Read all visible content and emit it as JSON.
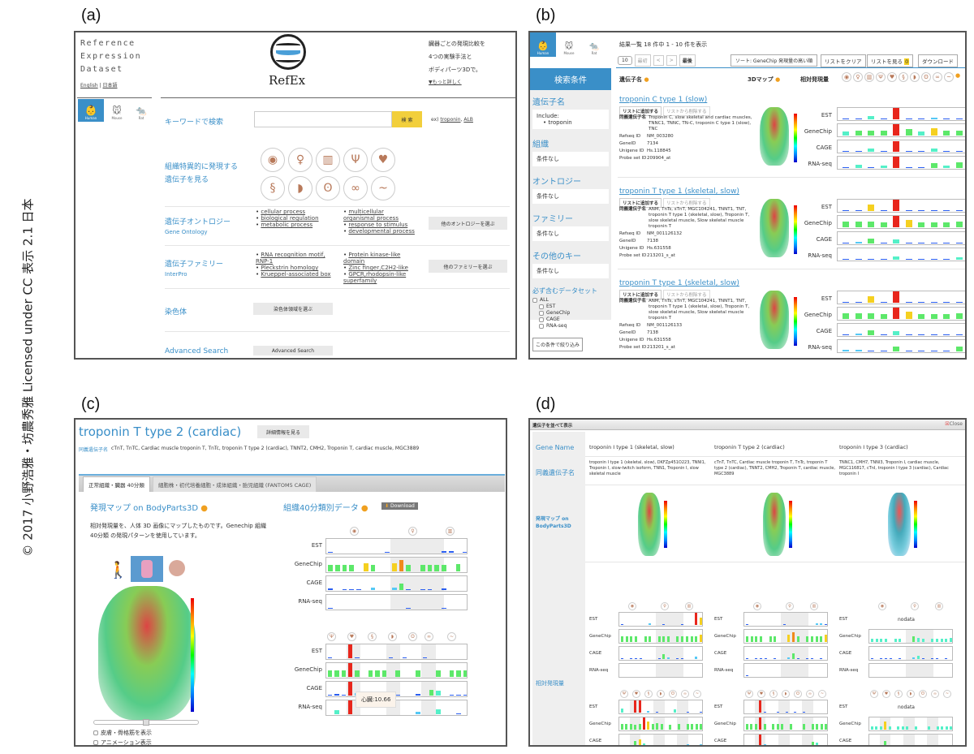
{
  "credit": "© 2017 小野浩雅・坊農秀雅 Licensed under CC 表示 2.1 日本",
  "panel_labels": [
    "(a)",
    "(b)",
    "(c)",
    "(d)"
  ],
  "panel_a": {
    "title_lines": [
      "Reference",
      "Expression",
      "Dataset"
    ],
    "lang_links": [
      "English",
      "日本語"
    ],
    "logo_text": "RefEx",
    "tagline_lines": [
      "臓器ごとの発現比較を",
      "4つの実験手法と",
      "ボディパーツ3Dで。"
    ],
    "more_link": "▼もっと詳しく",
    "species": [
      "Human",
      "Mouse",
      "Rat"
    ],
    "keyword_label": "キーワードで検索",
    "search_placeholder": "",
    "search_button": "検 索",
    "examples_prefix": "ex)",
    "examples": [
      "troponin",
      "ALB"
    ],
    "tissue_label_lines": [
      "組織特異的に発現する",
      "遺伝子を見る"
    ],
    "tissue_icons": [
      "brain",
      "body",
      "skin",
      "uterus",
      "heart",
      "intestine",
      "liver",
      "lung",
      "kidney",
      "pancreas"
    ],
    "ontology": {
      "title": "遺伝子オントロジー",
      "subtitle": "Gene Ontology",
      "col1": [
        "cellular process",
        "biological regulation",
        "metabolic process"
      ],
      "col2": [
        "multicellular organismal process",
        "response to stimulus",
        "developmental process"
      ],
      "button": "他のオントロジーを選ぶ"
    },
    "family": {
      "title": "遺伝子ファミリー",
      "subtitle": "InterPro",
      "col1": [
        "RNA recognition motif, RNP-1",
        "Pleckstrin homology",
        "Krueppel-associated box"
      ],
      "col2": [
        "Protein kinase-like domain",
        "Zinc finger,C2H2-like",
        "GPCR,rhodopsin-like superfamily"
      ],
      "button": "他のファミリーを選ぶ"
    },
    "chromosome": {
      "title": "染色体",
      "button": "染色体領域を選ぶ"
    },
    "advanced": {
      "title": "Advanced Search",
      "button": "Advanced Search"
    }
  },
  "panel_b": {
    "species": [
      "Human",
      "Mouse",
      "Rat"
    ],
    "result_summary": "結果一覧 18 件中 1 - 10 件を表示",
    "page_size": "10",
    "pager": [
      "最初",
      "<",
      ">",
      "最後"
    ],
    "sort": "ソート: GeneChip 発現量の高い順",
    "clear_list": "リストをクリア",
    "view_list": "リストを見る",
    "list_count": "0",
    "download": "ダウンロード",
    "col_gene": "遺伝子名",
    "col_3d": "3Dマップ",
    "col_expr": "相対発現量",
    "sidebar": {
      "header": "検索条件",
      "gene_label": "遺伝子名",
      "include_label": "Include:",
      "include_value": "troponin",
      "sections": [
        {
          "label": "組織",
          "value": "条件なし"
        },
        {
          "label": "オントロジー",
          "value": "条件なし"
        },
        {
          "label": "ファミリー",
          "value": "条件なし"
        },
        {
          "label": "その他のキー",
          "value": "条件なし"
        }
      ],
      "dataset_label": "必ず含むデータセット",
      "datasets": [
        "ALL",
        "EST",
        "GeneChip",
        "CAGE",
        "RNA-seq"
      ],
      "filter_button": "この条件で絞り込み"
    },
    "add_button": "リストに追加する",
    "remove_button": "リストから削除する",
    "field_labels": {
      "synonyms": "同義遺伝子名",
      "refseq": "Refseq ID",
      "geneid": "GeneID",
      "unigene": "Unigene ID",
      "probe": "Probe set ID"
    },
    "track_labels": [
      "EST",
      "GeneChip",
      "CAGE",
      "RNA-seq"
    ],
    "results": [
      {
        "name": "troponin C type 1 (slow)",
        "synonyms": "Troponin C, slow skeletal and cardiac muscles, TNNC1, TNNC, TN-C, troponin C type 1 (slow), TNC",
        "refseq": "NM_003280",
        "geneid": "7134",
        "unigene": "Hs.118845",
        "probe": "209904_at",
        "tracks": [
          [
            0.05,
            0.05,
            0.3,
            0.05,
            1,
            0.05,
            0.05,
            0.15,
            0,
            0.05
          ],
          [
            0.35,
            0.45,
            0.4,
            0.4,
            1,
            0.55,
            0.35,
            0.65,
            0.4,
            0.4
          ],
          [
            0.05,
            0.1,
            0.3,
            0.1,
            0.9,
            0.08,
            0.05,
            0.3,
            0.1,
            0.1
          ],
          [
            0.05,
            0.3,
            0.05,
            0.25,
            1,
            0.05,
            0.05,
            0.45,
            0.25,
            0.5
          ]
        ]
      },
      {
        "name": "troponin T type 1 (skeletal, slow)",
        "synonyms": "ANM, TnTs, sTnT, MGC104241, TNNT1, TNT, troponin T type 1 (skeletal, slow), Troponin T, slow skeletal muscle, Slow skeletal muscle troponin T",
        "refseq": "NM_001126132",
        "geneid": "7138",
        "unigene": "Hs.631558",
        "probe": "213201_s_at",
        "tracks": [
          [
            0.05,
            0,
            0.6,
            0.05,
            1,
            0.05,
            0.08,
            0,
            0,
            0.05
          ],
          [
            0.5,
            0.5,
            0.5,
            0.45,
            1,
            0.65,
            0.45,
            0.45,
            0.45,
            0.5
          ],
          [
            0.05,
            0.15,
            0.4,
            0.05,
            0.35,
            0.1,
            0.05,
            0.05,
            0.05,
            0.1
          ],
          [
            0.05,
            0,
            0.05,
            0.05,
            0.3,
            0.05,
            0.05,
            0.05,
            0.05,
            0.25
          ]
        ]
      },
      {
        "name": "troponin T type 1 (skeletal, slow)",
        "synonyms": "ANM, TnTs, sTnT, MGC104241, TNNT1, TNT, troponin T type 1 (skeletal, slow), Troponin T, slow skeletal muscle, Slow skeletal muscle troponin T",
        "refseq": "NM_001126133",
        "geneid": "7138",
        "unigene": "Hs.631558",
        "probe": "213201_s_at",
        "tracks": [
          [
            0.05,
            0,
            0.6,
            0.05,
            1,
            0.05,
            0.08,
            0,
            0,
            0.05
          ],
          [
            0.5,
            0.5,
            0.5,
            0.45,
            1,
            0.65,
            0.45,
            0.45,
            0.45,
            0.5
          ],
          [
            0.05,
            0.15,
            0.4,
            0.05,
            0.35,
            0.1,
            0.05,
            0.05,
            0.05,
            0.1
          ],
          [
            0.15,
            0.15,
            0.05,
            0.1,
            0.4,
            0.05,
            0.05,
            0.05,
            0.05,
            0.45
          ]
        ]
      }
    ]
  },
  "panel_c": {
    "gene_title": "troponin T type 2 (cardiac)",
    "detail_button": "詳細情報を見る",
    "synonyms_label": "同義遺伝子名",
    "synonyms": "cTnT, TnTC, Cardiac muscle troponin T, TnTc, troponin T type 2 (cardiac), TNNT2, CMH2, Troponin T, cardiac muscle, MGC3889",
    "tabs": [
      "正常組織・臓器 40分類",
      "細胞株・初代培養細胞・成体組織・胎児組織 (FANTOM5 CAGE)"
    ],
    "map_title": "発現マップ on BodyParts3D",
    "map_desc": "相対発現量を、人体 3D 画像にマップしたものです。Genechip 組織40分類 の発現パターンを使用しています。",
    "view_icons": [
      "full-body",
      "torso",
      "head"
    ],
    "data_title": "組織40分類別データ",
    "download": "Download",
    "checkboxes": [
      "皮膚・骨格筋を表示",
      "アニメーション表示"
    ],
    "tooltip": "心臓:10.66",
    "track_labels": [
      "EST",
      "GeneChip",
      "CAGE",
      "RNA-seq"
    ],
    "chart1": [
      [
        0.05,
        0,
        0,
        0,
        0,
        0,
        0,
        0,
        0.05,
        0,
        0,
        0,
        0,
        0,
        0,
        0,
        0.1,
        0.1,
        0,
        0.05
      ],
      [
        0.5,
        0.5,
        0.5,
        0.5,
        0,
        0.6,
        0.5,
        0,
        0,
        0.6,
        0.8,
        0.5,
        0,
        0.5,
        0.5,
        0.5,
        0.5,
        0,
        0.55,
        0
      ],
      [
        0.1,
        0,
        0.05,
        0.05,
        0.05,
        0,
        0.15,
        0,
        0,
        0.15,
        0.5,
        0.05,
        0,
        0.05,
        0.05,
        0,
        0.1,
        0,
        0,
        0
      ],
      [
        0.05,
        0,
        0,
        0,
        0,
        0,
        0,
        0,
        0,
        0,
        0,
        0.05,
        0,
        0,
        0,
        0,
        0.05,
        0,
        0,
        0
      ]
    ],
    "chart2": [
      [
        0.05,
        0,
        0,
        1,
        0.05,
        0,
        0,
        0,
        0,
        0.03,
        0,
        0.03,
        0,
        0,
        0.08,
        0,
        0,
        0,
        0,
        0,
        0
      ],
      [
        0.45,
        0.45,
        0.45,
        1,
        0.45,
        0,
        0.5,
        0.45,
        0.45,
        0,
        0.45,
        0,
        0,
        0.45,
        0,
        0,
        0.5,
        0,
        0.45,
        0.5,
        0.45
      ],
      [
        0.05,
        0.1,
        0.05,
        1,
        0.2,
        0,
        0.05,
        0.05,
        0.05,
        0,
        0.05,
        0,
        0,
        0.1,
        0,
        0.4,
        0.35,
        0,
        0.05,
        0.03,
        0.03
      ],
      [
        0,
        0.3,
        0,
        1,
        0,
        0,
        0,
        0,
        0,
        0,
        0,
        0,
        0,
        0.2,
        0,
        0,
        0.35,
        0,
        0,
        0.05,
        0
      ]
    ]
  },
  "panel_d": {
    "window_title": "遺伝子を並べて表示",
    "close": "Close",
    "row_labels": {
      "gene_name": "Gene Name",
      "synonyms": "同義遺伝子名",
      "map": "発現マップ on BodyParts3D",
      "expr": "相対発現量"
    },
    "genes": [
      {
        "name": "troponin I type 1 (skeletal, slow)",
        "synonyms": "troponin I type 1 (skeletal, slow), DKFZp451O223, TNNI1, Troponin I, slow-twitch isoform, TNN1, Troponin I, slow skeletal muscle",
        "est_nodata": false
      },
      {
        "name": "troponin T type 2 (cardiac)",
        "synonyms": "cTnT, TnTC, Cardiac muscle troponin T, TnTc, troponin T type 2 (cardiac), TNNT2, CMH2, Troponin T, cardiac muscle, MGC3889",
        "est_nodata": false
      },
      {
        "name": "troponin I type 3 (cardiac)",
        "synonyms": "TNNC1, CMH7, TNNI3, Troponin I, cardiac muscle, MGC116817, cTnI, troponin I type 3 (cardiac), Cardiac troponin I",
        "est_nodata": true
      }
    ],
    "nodata": "nodata",
    "track_labels": [
      "EST",
      "GeneChip",
      "CAGE",
      "RNA-seq"
    ]
  }
}
